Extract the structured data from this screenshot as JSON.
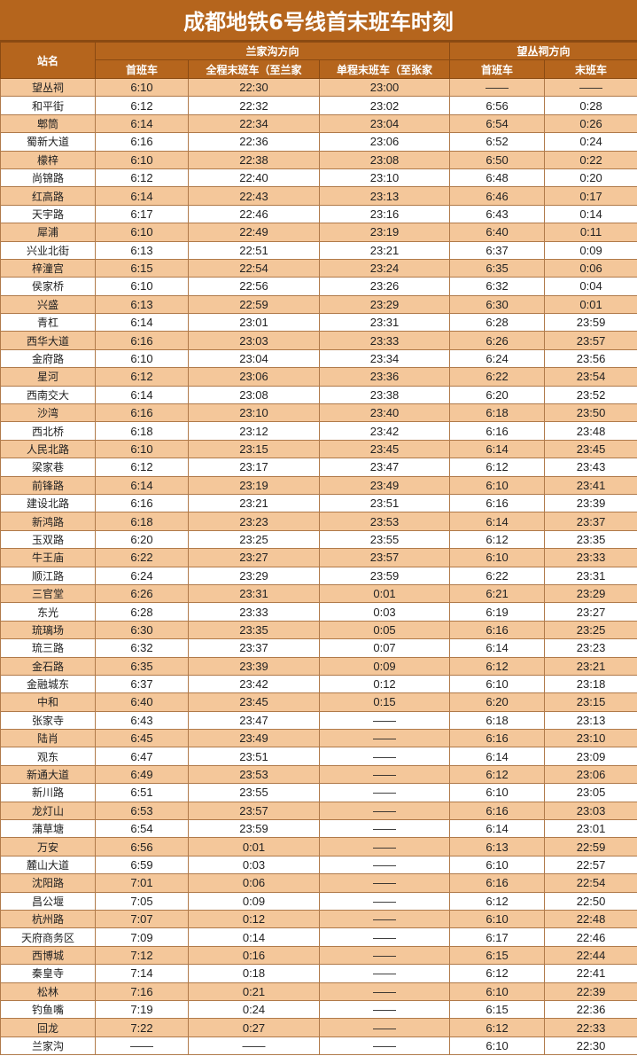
{
  "title": "成都地铁6号线首末班车时刻",
  "headers": {
    "station": "站名",
    "dir1": "兰家沟方向",
    "dir2": "望丛祠方向",
    "first1": "首班车",
    "full_last": "全程末班车（至兰家",
    "single_last": "单程末班车（至张家",
    "first2": "首班车",
    "last2": "末班车"
  },
  "rows": [
    [
      "望丛祠",
      "6:10",
      "22:30",
      "23:00",
      "——",
      "——"
    ],
    [
      "和平街",
      "6:12",
      "22:32",
      "23:02",
      "6:56",
      "0:28"
    ],
    [
      "郫筒",
      "6:14",
      "22:34",
      "23:04",
      "6:54",
      "0:26"
    ],
    [
      "蜀新大道",
      "6:16",
      "22:36",
      "23:06",
      "6:52",
      "0:24"
    ],
    [
      "檬梓",
      "6:10",
      "22:38",
      "23:08",
      "6:50",
      "0:22"
    ],
    [
      "尚锦路",
      "6:12",
      "22:40",
      "23:10",
      "6:48",
      "0:20"
    ],
    [
      "红高路",
      "6:14",
      "22:43",
      "23:13",
      "6:46",
      "0:17"
    ],
    [
      "天宇路",
      "6:17",
      "22:46",
      "23:16",
      "6:43",
      "0:14"
    ],
    [
      "犀浦",
      "6:10",
      "22:49",
      "23:19",
      "6:40",
      "0:11"
    ],
    [
      "兴业北街",
      "6:13",
      "22:51",
      "23:21",
      "6:37",
      "0:09"
    ],
    [
      "梓潼宫",
      "6:15",
      "22:54",
      "23:24",
      "6:35",
      "0:06"
    ],
    [
      "侯家桥",
      "6:10",
      "22:56",
      "23:26",
      "6:32",
      "0:04"
    ],
    [
      "兴盛",
      "6:13",
      "22:59",
      "23:29",
      "6:30",
      "0:01"
    ],
    [
      "青杠",
      "6:14",
      "23:01",
      "23:31",
      "6:28",
      "23:59"
    ],
    [
      "西华大道",
      "6:16",
      "23:03",
      "23:33",
      "6:26",
      "23:57"
    ],
    [
      "金府路",
      "6:10",
      "23:04",
      "23:34",
      "6:24",
      "23:56"
    ],
    [
      "星河",
      "6:12",
      "23:06",
      "23:36",
      "6:22",
      "23:54"
    ],
    [
      "西南交大",
      "6:14",
      "23:08",
      "23:38",
      "6:20",
      "23:52"
    ],
    [
      "沙湾",
      "6:16",
      "23:10",
      "23:40",
      "6:18",
      "23:50"
    ],
    [
      "西北桥",
      "6:18",
      "23:12",
      "23:42",
      "6:16",
      "23:48"
    ],
    [
      "人民北路",
      "6:10",
      "23:15",
      "23:45",
      "6:14",
      "23:45"
    ],
    [
      "梁家巷",
      "6:12",
      "23:17",
      "23:47",
      "6:12",
      "23:43"
    ],
    [
      "前锋路",
      "6:14",
      "23:19",
      "23:49",
      "6:10",
      "23:41"
    ],
    [
      "建设北路",
      "6:16",
      "23:21",
      "23:51",
      "6:16",
      "23:39"
    ],
    [
      "新鸿路",
      "6:18",
      "23:23",
      "23:53",
      "6:14",
      "23:37"
    ],
    [
      "玉双路",
      "6:20",
      "23:25",
      "23:55",
      "6:12",
      "23:35"
    ],
    [
      "牛王庙",
      "6:22",
      "23:27",
      "23:57",
      "6:10",
      "23:33"
    ],
    [
      "顺江路",
      "6:24",
      "23:29",
      "23:59",
      "6:22",
      "23:31"
    ],
    [
      "三官堂",
      "6:26",
      "23:31",
      "0:01",
      "6:21",
      "23:29"
    ],
    [
      "东光",
      "6:28",
      "23:33",
      "0:03",
      "6:19",
      "23:27"
    ],
    [
      "琉璃场",
      "6:30",
      "23:35",
      "0:05",
      "6:16",
      "23:25"
    ],
    [
      "琉三路",
      "6:32",
      "23:37",
      "0:07",
      "6:14",
      "23:23"
    ],
    [
      "金石路",
      "6:35",
      "23:39",
      "0:09",
      "6:12",
      "23:21"
    ],
    [
      "金融城东",
      "6:37",
      "23:42",
      "0:12",
      "6:10",
      "23:18"
    ],
    [
      "中和",
      "6:40",
      "23:45",
      "0:15",
      "6:20",
      "23:15"
    ],
    [
      "张家寺",
      "6:43",
      "23:47",
      "——",
      "6:18",
      "23:13"
    ],
    [
      "陆肖",
      "6:45",
      "23:49",
      "——",
      "6:16",
      "23:10"
    ],
    [
      "观东",
      "6:47",
      "23:51",
      "——",
      "6:14",
      "23:09"
    ],
    [
      "新通大道",
      "6:49",
      "23:53",
      "——",
      "6:12",
      "23:06"
    ],
    [
      "新川路",
      "6:51",
      "23:55",
      "——",
      "6:10",
      "23:05"
    ],
    [
      "龙灯山",
      "6:53",
      "23:57",
      "——",
      "6:16",
      "23:03"
    ],
    [
      "蒲草塘",
      "6:54",
      "23:59",
      "——",
      "6:14",
      "23:01"
    ],
    [
      "万安",
      "6:56",
      "0:01",
      "——",
      "6:13",
      "22:59"
    ],
    [
      "麓山大道",
      "6:59",
      "0:03",
      "——",
      "6:10",
      "22:57"
    ],
    [
      "沈阳路",
      "7:01",
      "0:06",
      "——",
      "6:16",
      "22:54"
    ],
    [
      "昌公堰",
      "7:05",
      "0:09",
      "——",
      "6:12",
      "22:50"
    ],
    [
      "杭州路",
      "7:07",
      "0:12",
      "——",
      "6:10",
      "22:48"
    ],
    [
      "天府商务区",
      "7:09",
      "0:14",
      "——",
      "6:17",
      "22:46"
    ],
    [
      "西博城",
      "7:12",
      "0:16",
      "——",
      "6:15",
      "22:44"
    ],
    [
      "秦皇寺",
      "7:14",
      "0:18",
      "——",
      "6:12",
      "22:41"
    ],
    [
      "松林",
      "7:16",
      "0:21",
      "——",
      "6:10",
      "22:39"
    ],
    [
      "钓鱼嘴",
      "7:19",
      "0:24",
      "——",
      "6:15",
      "22:36"
    ],
    [
      "回龙",
      "7:22",
      "0:27",
      "——",
      "6:12",
      "22:33"
    ],
    [
      "兰家沟",
      "——",
      "——",
      "——",
      "6:10",
      "22:30"
    ]
  ],
  "colors": {
    "header": "#b5651d",
    "row_odd": "#f4c79a",
    "row_even": "#ffffff"
  }
}
